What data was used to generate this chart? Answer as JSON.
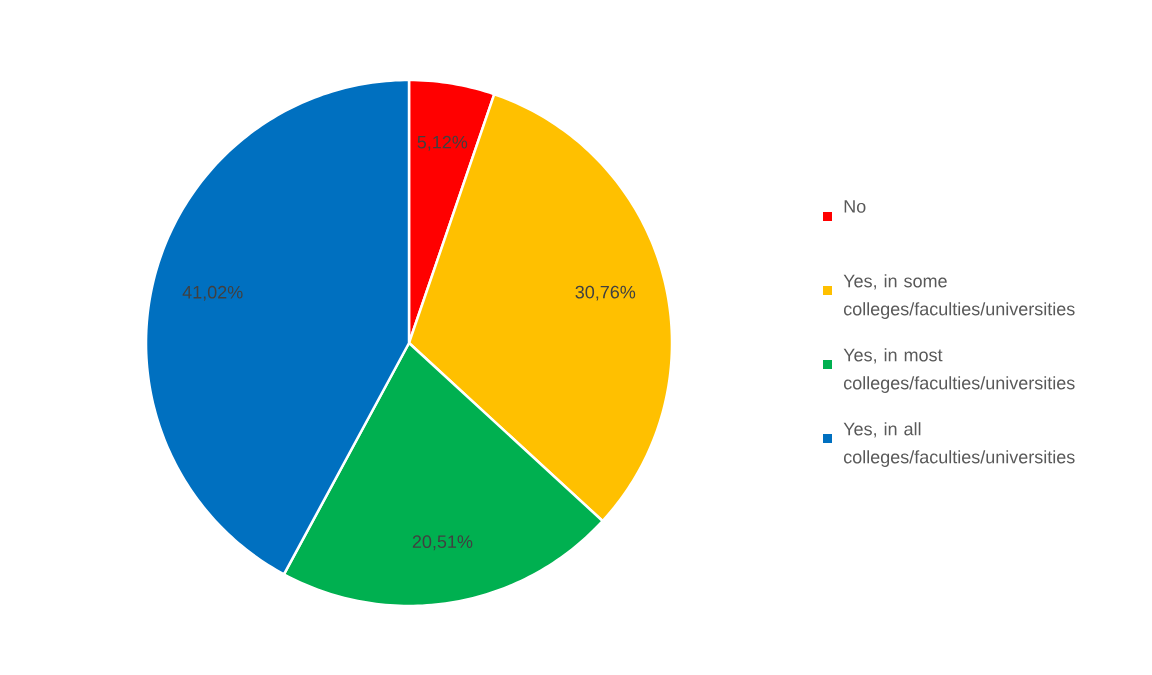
{
  "chart_data": {
    "type": "pie",
    "categories": [
      "No",
      "Yes, in some colleges/faculties/universities",
      "Yes, in most colleges/faculties/universities",
      "Yes, in all colleges/faculties/universities"
    ],
    "values": [
      5.12,
      30.76,
      20.51,
      41.02
    ],
    "value_labels": [
      "5,12%",
      "30,76%",
      "20,51%",
      "41,02%"
    ],
    "colors": [
      "#ff0000",
      "#ffc000",
      "#00b050",
      "#0070c0"
    ],
    "legend": "right"
  }
}
